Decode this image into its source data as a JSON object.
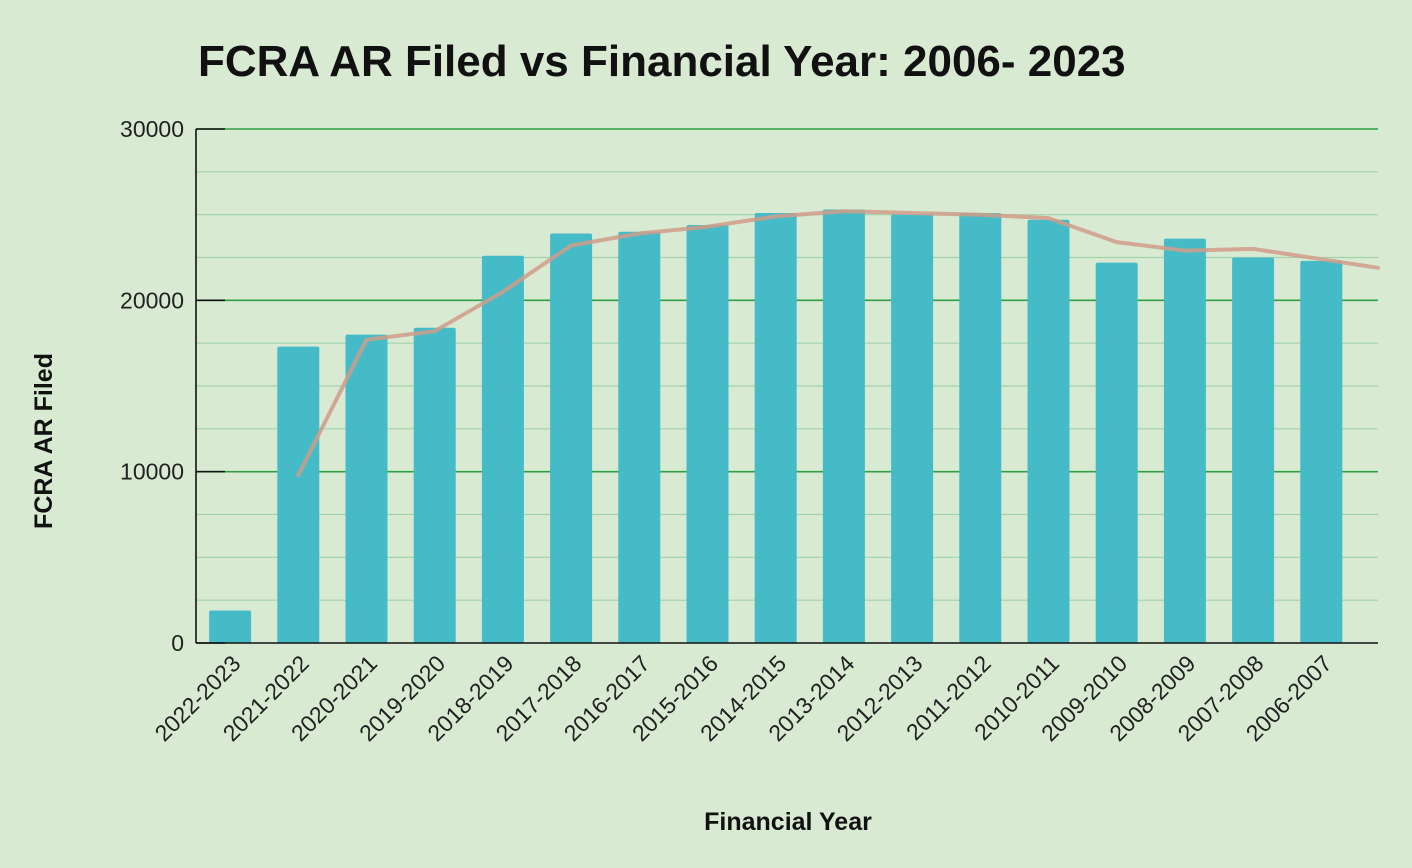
{
  "chart_data": {
    "type": "bar",
    "title": "FCRA AR Filed vs Financial Year: 2006- 2023",
    "xlabel": "Financial Year",
    "ylabel": "FCRA AR Filed",
    "categories": [
      "2022-2023",
      "2021-2022",
      "2020-2021",
      "2019-2020",
      "2018-2019",
      "2017-2018",
      "2016-2017",
      "2015-2016",
      "2014-2015",
      "2013-2014",
      "2012-2013",
      "2011-2012",
      "2010-2011",
      "2009-2010",
      "2008-2009",
      "2007-2008",
      "2006-2007"
    ],
    "series": [
      {
        "type": "bar",
        "values": [
          1900,
          17300,
          18000,
          18400,
          22600,
          23900,
          24000,
          24400,
          25100,
          25300,
          25000,
          25100,
          24700,
          22200,
          23600,
          22500,
          22300
        ],
        "color": "#45BBC8"
      },
      {
        "type": "line",
        "values": [
          null,
          9800,
          17700,
          18200,
          20500,
          23200,
          23900,
          24300,
          24900,
          25200,
          25100,
          25000,
          24800,
          23400,
          22900,
          23000,
          22400
        ],
        "extend_right": 21900,
        "color": "#D09C88"
      }
    ],
    "ylim": [
      0,
      30000
    ],
    "yticks": [
      0,
      10000,
      20000,
      30000
    ],
    "grid": true,
    "minor_gridlines_per_major": 3,
    "legend": "none",
    "colors": {
      "background": "#D9EAD3",
      "major_grid": "#2EA043",
      "minor_grid": "#9FD3A8",
      "axis": "#111111",
      "text": "#111111"
    }
  }
}
